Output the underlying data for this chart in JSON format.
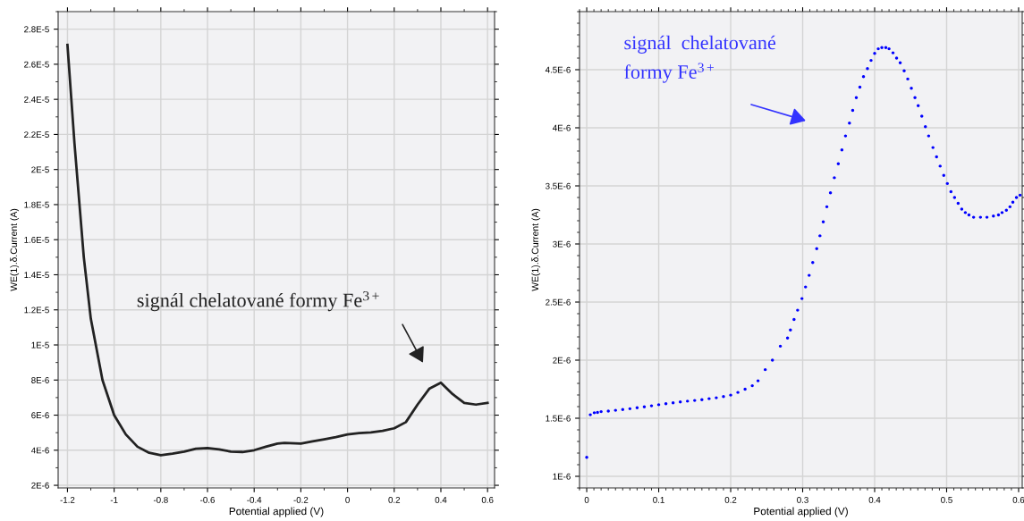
{
  "chart_data": [
    {
      "type": "line",
      "xlabel": "Potential applied (V)",
      "ylabel": "WE(1).δ.Current (A)",
      "grid": true,
      "marker": "none",
      "line_style": "solid",
      "xlim": [
        -1.24,
        0.63
      ],
      "xticks": [
        -1.2,
        -1,
        -0.8,
        -0.6,
        -0.4,
        -0.2,
        0,
        0.2,
        0.4,
        0.6
      ],
      "ylim": [
        1.85e-06,
        2.9e-05
      ],
      "yticks": [
        {
          "value": 2e-06,
          "label": "2E-6"
        },
        {
          "value": 4e-06,
          "label": "4E-6"
        },
        {
          "value": 6e-06,
          "label": "6E-6"
        },
        {
          "value": 8e-06,
          "label": "8E-6"
        },
        {
          "value": 1e-05,
          "label": "1E-5"
        },
        {
          "value": 1.2e-05,
          "label": "1.2E-5"
        },
        {
          "value": 1.4e-05,
          "label": "1.4E-5"
        },
        {
          "value": 1.6e-05,
          "label": "1.6E-5"
        },
        {
          "value": 1.8e-05,
          "label": "1.8E-5"
        },
        {
          "value": 2e-05,
          "label": "2E-5"
        },
        {
          "value": 2.2e-05,
          "label": "2.2E-5"
        },
        {
          "value": 2.4e-05,
          "label": "2.4E-5"
        },
        {
          "value": 2.6e-05,
          "label": "2.6E-5"
        },
        {
          "value": 2.8e-05,
          "label": "2.8E-5"
        }
      ],
      "annotations": [
        "signál chelatované formy Fe$^{3+}$"
      ],
      "series": [
        {
          "color": "#222222",
          "x": [
            -1.2,
            -1.17,
            -1.13,
            -1.1,
            -1.05,
            -1.0,
            -0.95,
            -0.9,
            -0.85,
            -0.8,
            -0.75,
            -0.7,
            -0.65,
            -0.6,
            -0.55,
            -0.5,
            -0.45,
            -0.4,
            -0.35,
            -0.3,
            -0.27,
            -0.2,
            -0.15,
            -0.1,
            -0.05,
            0,
            0.05,
            0.1,
            0.15,
            0.2,
            0.25,
            0.3,
            0.35,
            0.4,
            0.45,
            0.5,
            0.55,
            0.6
          ],
          "values": [
            2.71e-05,
            2.15e-05,
            1.5e-05,
            1.15e-05,
            8e-06,
            6e-06,
            4.9e-06,
            4.2e-06,
            3.85e-06,
            3.72e-06,
            3.8e-06,
            3.92e-06,
            4.08e-06,
            4.12e-06,
            4.05e-06,
            3.92e-06,
            3.9e-06,
            4e-06,
            4.2e-06,
            4.38e-06,
            4.42e-06,
            4.38e-06,
            4.5e-06,
            4.62e-06,
            4.75e-06,
            4.9e-06,
            4.98e-06,
            5.02e-06,
            5.1e-06,
            5.25e-06,
            5.6e-06,
            6.6e-06,
            7.5e-06,
            7.85e-06,
            7.2e-06,
            6.7e-06,
            6.6e-06,
            6.7e-06
          ]
        }
      ]
    },
    {
      "type": "scatter",
      "xlabel": "Potential applied (V)",
      "ylabel": "WE(1).δ.Current (A)",
      "grid": true,
      "marker": "circle",
      "xlim": [
        -0.01,
        0.605
      ],
      "xticks": [
        0,
        0.1,
        0.2,
        0.3,
        0.4,
        0.5,
        0.6
      ],
      "ylim": [
        9e-07,
        5e-06
      ],
      "yticks": [
        {
          "value": 1e-06,
          "label": "1E-6"
        },
        {
          "value": 1.5e-06,
          "label": "1.5E-6"
        },
        {
          "value": 2e-06,
          "label": "2E-6"
        },
        {
          "value": 2.5e-06,
          "label": "2.5E-6"
        },
        {
          "value": 3e-06,
          "label": "3E-6"
        },
        {
          "value": 3.5e-06,
          "label": "3.5E-6"
        },
        {
          "value": 4e-06,
          "label": "4E-6"
        },
        {
          "value": 4.5e-06,
          "label": "4.5E-6"
        }
      ],
      "annotations": [
        "signál  chelatované\nformy Fe$^{3+}$"
      ],
      "series": [
        {
          "color": "#0000ff",
          "x": [
            0,
            0.005,
            0.0105,
            0.015,
            0.02,
            0.03,
            0.04,
            0.05,
            0.06,
            0.07,
            0.08,
            0.09,
            0.1,
            0.11,
            0.12,
            0.13,
            0.14,
            0.15,
            0.16,
            0.17,
            0.18,
            0.19,
            0.2,
            0.21,
            0.22,
            0.23,
            0.238,
            0.248,
            0.258,
            0.269,
            0.279,
            0.283,
            0.288,
            0.293,
            0.299,
            0.304,
            0.309,
            0.314,
            0.3195,
            0.324,
            0.3286,
            0.3336,
            0.3386,
            0.344,
            0.3495,
            0.3545,
            0.3595,
            0.365,
            0.3695,
            0.3745,
            0.3795,
            0.3845,
            0.39,
            0.395,
            0.4,
            0.405,
            0.41,
            0.4155,
            0.42,
            0.4255,
            0.4305,
            0.4355,
            0.441,
            0.446,
            0.451,
            0.456,
            0.4605,
            0.4655,
            0.4705,
            0.475,
            0.481,
            0.486,
            0.491,
            0.496,
            0.501,
            0.506,
            0.511,
            0.516,
            0.521,
            0.526,
            0.531,
            0.5375,
            0.547,
            0.556,
            0.565,
            0.572,
            0.577,
            0.583,
            0.588,
            0.592,
            0.597,
            0.602
          ],
          "values": [
            1.164e-06,
            1.53e-06,
            1.547e-06,
            1.55e-06,
            1.557e-06,
            1.561e-06,
            1.568e-06,
            1.575e-06,
            1.582e-06,
            1.59e-06,
            1.598e-06,
            1.607e-06,
            1.616e-06,
            1.625e-06,
            1.633e-06,
            1.64e-06,
            1.647e-06,
            1.653e-06,
            1.66e-06,
            1.668e-06,
            1.676e-06,
            1.686e-06,
            1.699e-06,
            1.722e-06,
            1.75e-06,
            1.78e-06,
            1.822e-06,
            1.918e-06,
            2e-06,
            2.12e-06,
            2.19e-06,
            2.26e-06,
            2.35e-06,
            2.43e-06,
            2.53e-06,
            2.63e-06,
            2.73e-06,
            2.84e-06,
            2.96e-06,
            3.07e-06,
            3.19e-06,
            3.32e-06,
            3.44e-06,
            3.57e-06,
            3.69e-06,
            3.81e-06,
            3.93e-06,
            4.04e-06,
            4.15e-06,
            4.26e-06,
            4.35e-06,
            4.44e-06,
            4.51e-06,
            4.58e-06,
            4.64e-06,
            4.68e-06,
            4.69e-06,
            4.69e-06,
            4.68e-06,
            4.645e-06,
            4.6e-06,
            4.56e-06,
            4.49e-06,
            4.42e-06,
            4.34e-06,
            4.26e-06,
            4.19e-06,
            4.1e-06,
            4.01e-06,
            3.93e-06,
            3.83e-06,
            3.75e-06,
            3.67e-06,
            3.59e-06,
            3.52e-06,
            3.45e-06,
            3.4e-06,
            3.35e-06,
            3.3e-06,
            3.27e-06,
            3.25e-06,
            3.23e-06,
            3.23e-06,
            3.23e-06,
            3.24e-06,
            3.25e-06,
            3.27e-06,
            3.29e-06,
            3.32e-06,
            3.36e-06,
            3.4e-06,
            3.42e-06
          ]
        }
      ]
    }
  ]
}
